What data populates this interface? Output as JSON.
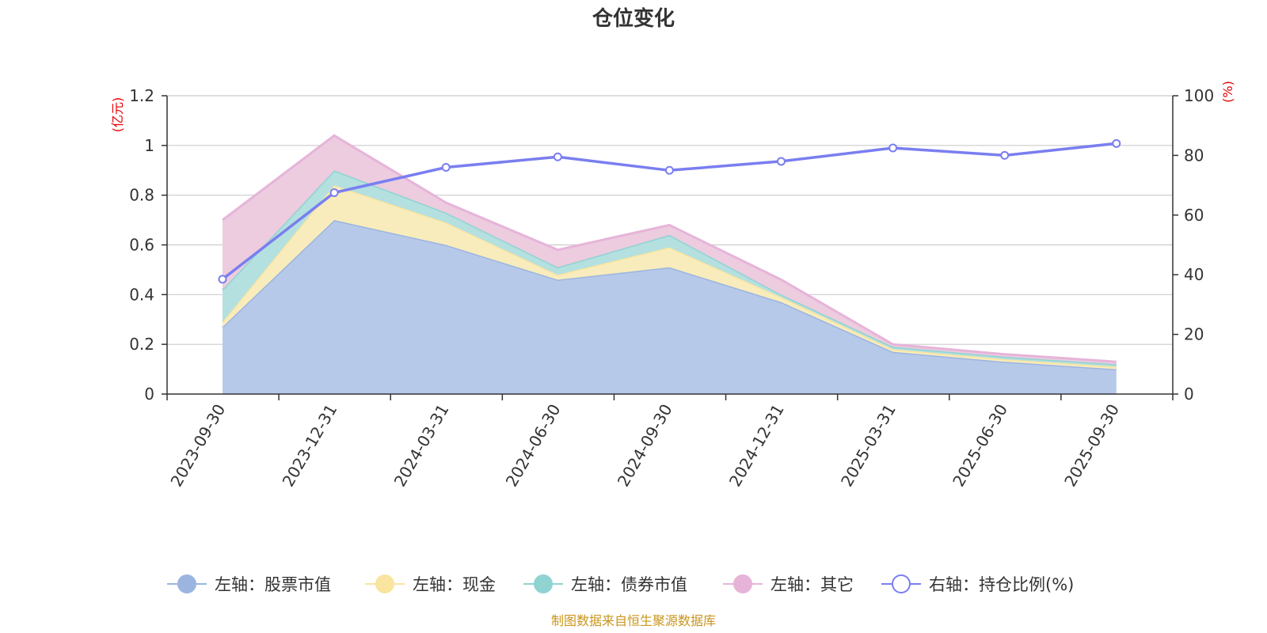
{
  "chart_data": {
    "type": "area",
    "title": "仓位变化",
    "left_axis_unit": "(亿元)",
    "right_axis_unit": "(%)",
    "left_ylim": [
      0,
      1.2
    ],
    "left_ticks": [
      "0",
      "0.2",
      "0.4",
      "0.6",
      "0.8",
      "1",
      "1.2"
    ],
    "right_ylim": [
      0,
      100
    ],
    "right_ticks": [
      "0",
      "20",
      "40",
      "60",
      "80",
      "100"
    ],
    "categories": [
      "2023-09-30",
      "2023-12-31",
      "2024-03-31",
      "2024-06-30",
      "2024-09-30",
      "2024-12-31",
      "2025-03-31",
      "2025-06-30",
      "2025-09-30"
    ],
    "stacked_series": [
      {
        "name": "左轴：股票市值",
        "axis": "left",
        "color": "#9bb5e0",
        "fill": "#b7c9e9",
        "values": [
          0.27,
          0.7,
          0.6,
          0.46,
          0.51,
          0.37,
          0.17,
          0.13,
          0.1
        ]
      },
      {
        "name": "左轴：现金",
        "axis": "left",
        "color": "#f9e4a0",
        "fill": "#f9ecbc",
        "values": [
          0.02,
          0.14,
          0.09,
          0.02,
          0.08,
          0.02,
          0.01,
          0.01,
          0.01
        ]
      },
      {
        "name": "左轴：债券市值",
        "axis": "left",
        "color": "#90d3d3",
        "fill": "#b4e0e0",
        "values": [
          0.13,
          0.06,
          0.04,
          0.03,
          0.05,
          0.01,
          0.01,
          0.01,
          0.01
        ]
      },
      {
        "name": "左轴：其它",
        "axis": "left",
        "color": "#e6b4d9",
        "fill": "#ecccde",
        "values": [
          0.28,
          0.14,
          0.04,
          0.07,
          0.04,
          0.06,
          0.01,
          0.01,
          0.01
        ]
      }
    ],
    "line_series": {
      "name": "右轴：持仓比例(%)",
      "axis": "right",
      "color": "#7a7ef0",
      "values": [
        38.5,
        67.5,
        76,
        79.5,
        75,
        78,
        82.5,
        80,
        84
      ]
    }
  },
  "legend": [
    {
      "label": "左轴：股票市值",
      "color": "#9bb5e0",
      "marker": "filled"
    },
    {
      "label": "左轴：现金",
      "color": "#f9e4a0",
      "marker": "filled"
    },
    {
      "label": "左轴：债券市值",
      "color": "#90d3d3",
      "marker": "filled"
    },
    {
      "label": "左轴：其它",
      "color": "#e6b4d9",
      "marker": "filled"
    },
    {
      "label": "右轴：持仓比例(%)",
      "color": "#7a7ef0",
      "marker": "hollow"
    }
  ],
  "source_text": "制图数据来自恒生聚源数据库"
}
